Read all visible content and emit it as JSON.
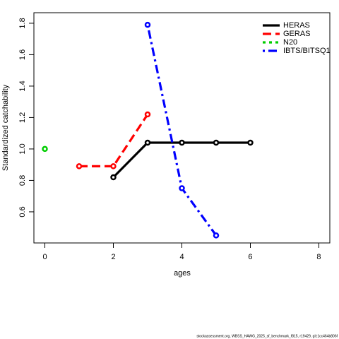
{
  "chart_data": {
    "type": "line",
    "xlabel": "ages",
    "ylabel": "Standardized catchability",
    "footer": "stockassessment.org, WBSS_HAWG_2025_sf_benchmark_f815, r19429, git:1cc464b806f",
    "xlim": [
      -0.32,
      8.32
    ],
    "xticks": [
      0,
      2,
      4,
      6,
      8
    ],
    "ylim": [
      0.402,
      1.867
    ],
    "yticks": [
      0.6,
      0.8,
      {
        "value": 1,
        "label": "1.0"
      },
      1.2,
      1.4,
      1.6,
      1.8
    ],
    "legend": "top-right",
    "series": [
      {
        "name": "HERAS",
        "color": "#000000",
        "dash": "solid",
        "x": [
          2,
          3,
          4,
          5,
          6
        ],
        "values": [
          0.82,
          1.04,
          1.04,
          1.04,
          1.04
        ]
      },
      {
        "name": "GERAS",
        "color": "#ff0000",
        "dash": "dashed",
        "x": [
          1,
          2,
          3
        ],
        "values": [
          0.89,
          0.89,
          1.22
        ]
      },
      {
        "name": "N20",
        "color": "#00cd00",
        "dash": "dotted",
        "x": [
          0
        ],
        "values": [
          1.0
        ]
      },
      {
        "name": "IBTS/BITSQ1",
        "color": "#0000ff",
        "dash": "dotdash",
        "x": [
          3,
          4,
          5
        ],
        "values": [
          1.79,
          0.75,
          0.45
        ]
      }
    ]
  }
}
